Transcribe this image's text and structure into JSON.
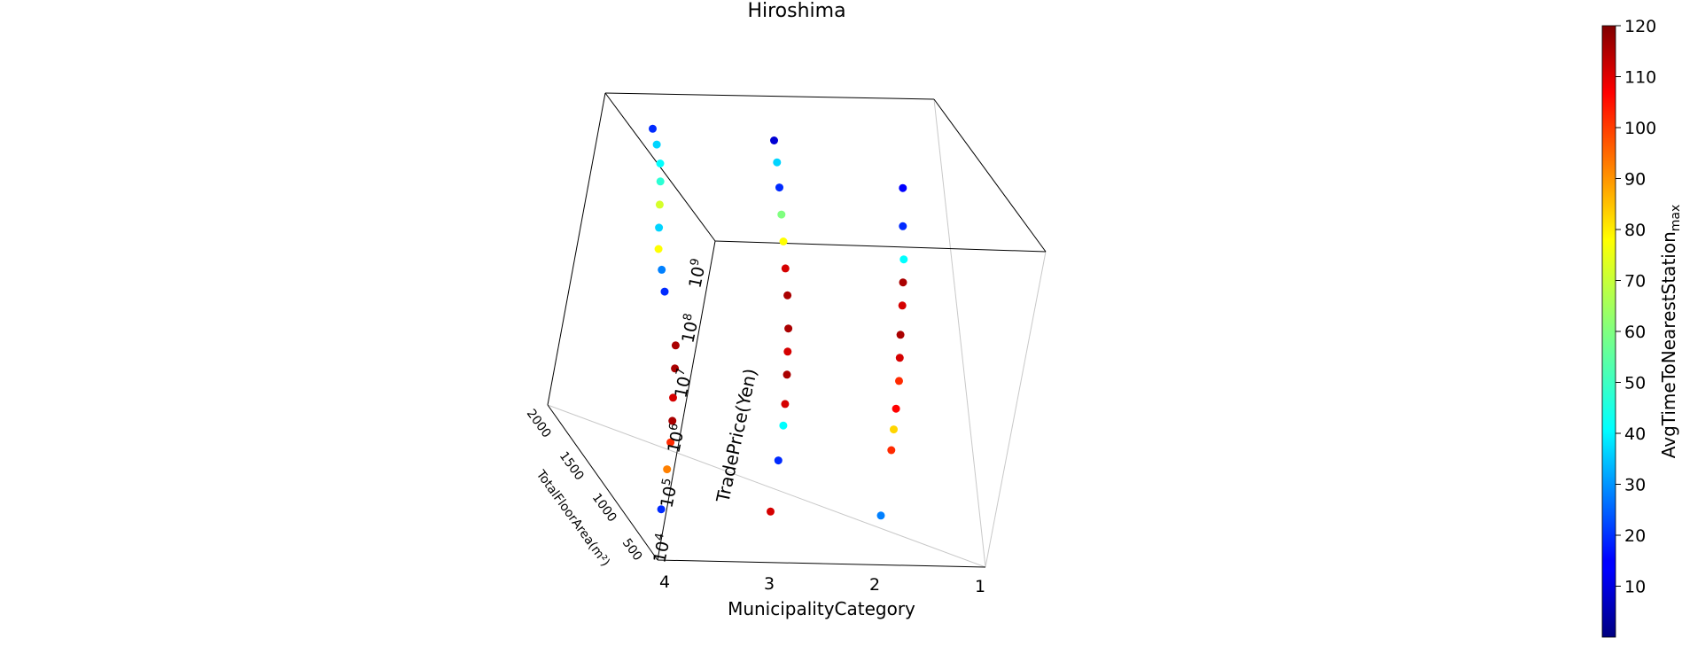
{
  "chart_data": {
    "type": "scatter",
    "title": "Hiroshima",
    "xlabel": "MunicipalityCategory",
    "ylabel": "TotalFloorArea(m²)",
    "zlabel": "TradePrice(Yen)",
    "x_ticks": [
      "4",
      "3",
      "2",
      "1"
    ],
    "y_ticks": [
      "500",
      "1000",
      "1500",
      "2000"
    ],
    "z_ticks": [
      "10^4",
      "10^5",
      "10^6",
      "10^7",
      "10^8",
      "10^9"
    ],
    "z_scale": "log",
    "colorbar": {
      "label": "AvgTimeToNearestStation",
      "label_subscript": "max",
      "ticks": [
        "10",
        "20",
        "30",
        "40",
        "50",
        "60",
        "70",
        "80",
        "90",
        "100",
        "110",
        "120"
      ],
      "range": [
        0,
        120
      ],
      "colormap": "jet"
    },
    "series": [
      {
        "x": 4,
        "points": [
          {
            "area": 1200,
            "price": 2000000000.0,
            "time": 20
          },
          {
            "area": 1100,
            "price": 1500000000.0,
            "time": 40
          },
          {
            "area": 1000,
            "price": 1000000000.0,
            "time": 45
          },
          {
            "area": 950,
            "price": 600000000.0,
            "time": 50
          },
          {
            "area": 900,
            "price": 300000000.0,
            "time": 70
          },
          {
            "area": 850,
            "price": 150000000.0,
            "time": 40
          },
          {
            "area": 800,
            "price": 80000000.0,
            "time": 75
          },
          {
            "area": 700,
            "price": 50000000.0,
            "time": 30
          },
          {
            "area": 600,
            "price": 30000000.0,
            "time": 20
          },
          {
            "area": 300,
            "price": 10000000.0,
            "time": 115
          },
          {
            "area": 250,
            "price": 5000000.0,
            "time": 115
          },
          {
            "area": 200,
            "price": 2000000.0,
            "time": 110
          },
          {
            "area": 150,
            "price": 1000000.0,
            "time": 115
          },
          {
            "area": 120,
            "price": 500000.0,
            "time": 100
          },
          {
            "area": 100,
            "price": 200000.0,
            "time": 90
          },
          {
            "area": 80,
            "price": 50000.0,
            "time": 20
          }
        ]
      },
      {
        "x": 3,
        "points": [
          {
            "area": 1000,
            "price": 2500000000.0,
            "time": 10
          },
          {
            "area": 900,
            "price": 1500000000.0,
            "time": 40
          },
          {
            "area": 800,
            "price": 800000000.0,
            "time": 20
          },
          {
            "area": 700,
            "price": 400000000.0,
            "time": 60
          },
          {
            "area": 600,
            "price": 200000000.0,
            "time": 75
          },
          {
            "area": 500,
            "price": 100000000.0,
            "time": 110
          },
          {
            "area": 400,
            "price": 50000000.0,
            "time": 115
          },
          {
            "area": 300,
            "price": 20000000.0,
            "time": 115
          },
          {
            "area": 250,
            "price": 10000000.0,
            "time": 110
          },
          {
            "area": 200,
            "price": 5000000.0,
            "time": 115
          },
          {
            "area": 150,
            "price": 2000000.0,
            "time": 110
          },
          {
            "area": 120,
            "price": 1000000.0,
            "time": 45
          },
          {
            "area": 100,
            "price": 300000.0,
            "time": 20
          },
          {
            "area": 80,
            "price": 50000.0,
            "time": 110
          }
        ]
      },
      {
        "x": 2,
        "points": [
          {
            "area": 600,
            "price": 1500000000.0,
            "time": 15
          },
          {
            "area": 500,
            "price": 500000000.0,
            "time": 20
          },
          {
            "area": 400,
            "price": 200000000.0,
            "time": 45
          },
          {
            "area": 350,
            "price": 100000000.0,
            "time": 115
          },
          {
            "area": 300,
            "price": 50000000.0,
            "time": 110
          },
          {
            "area": 250,
            "price": 20000000.0,
            "time": 115
          },
          {
            "area": 200,
            "price": 10000000.0,
            "time": 110
          },
          {
            "area": 150,
            "price": 5000000.0,
            "time": 100
          },
          {
            "area": 120,
            "price": 2000000.0,
            "time": 105
          },
          {
            "area": 100,
            "price": 1000000.0,
            "time": 80
          },
          {
            "area": 80,
            "price": 500000.0,
            "time": 100
          },
          {
            "area": 60,
            "price": 50000.0,
            "time": 30
          }
        ]
      }
    ]
  }
}
